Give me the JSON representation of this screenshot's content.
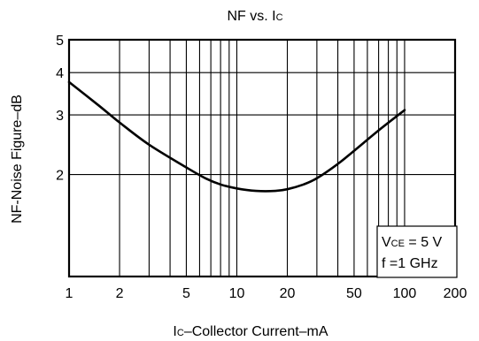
{
  "chart_data": {
    "type": "line",
    "title": {
      "main": "NF vs. I",
      "sub": "C"
    },
    "xlabel": {
      "pre": "I",
      "sub": "C",
      "post": "–Collector Current–mA"
    },
    "ylabel": "NF-Noise Figure–dB",
    "x_scale": "log",
    "y_scale": "log",
    "xlim": [
      1,
      200
    ],
    "ylim": [
      1.0,
      5
    ],
    "x_ticks": [
      1,
      2,
      5,
      10,
      20,
      50,
      100,
      200
    ],
    "x_tick_labels": [
      "1",
      "2",
      "5",
      "10",
      "20",
      "50",
      "100",
      "200"
    ],
    "y_ticks": [
      2,
      3,
      4,
      5
    ],
    "y_tick_labels": [
      "2",
      "3",
      "4",
      "5"
    ],
    "grid": true,
    "series": [
      {
        "x": [
          1,
          1.5,
          2,
          3,
          5,
          6.5,
          8,
          10,
          13,
          17,
          20,
          25,
          30,
          40,
          50,
          70,
          100
        ],
        "y": [
          3.75,
          3.2,
          2.85,
          2.45,
          2.1,
          1.95,
          1.87,
          1.82,
          1.79,
          1.79,
          1.81,
          1.87,
          1.95,
          2.15,
          2.35,
          2.7,
          3.1
        ]
      }
    ],
    "annotation": {
      "line1": {
        "pre": "V",
        "sub": "CE",
        "post": " = 5 V"
      },
      "line2": "f =1 GHz"
    }
  }
}
